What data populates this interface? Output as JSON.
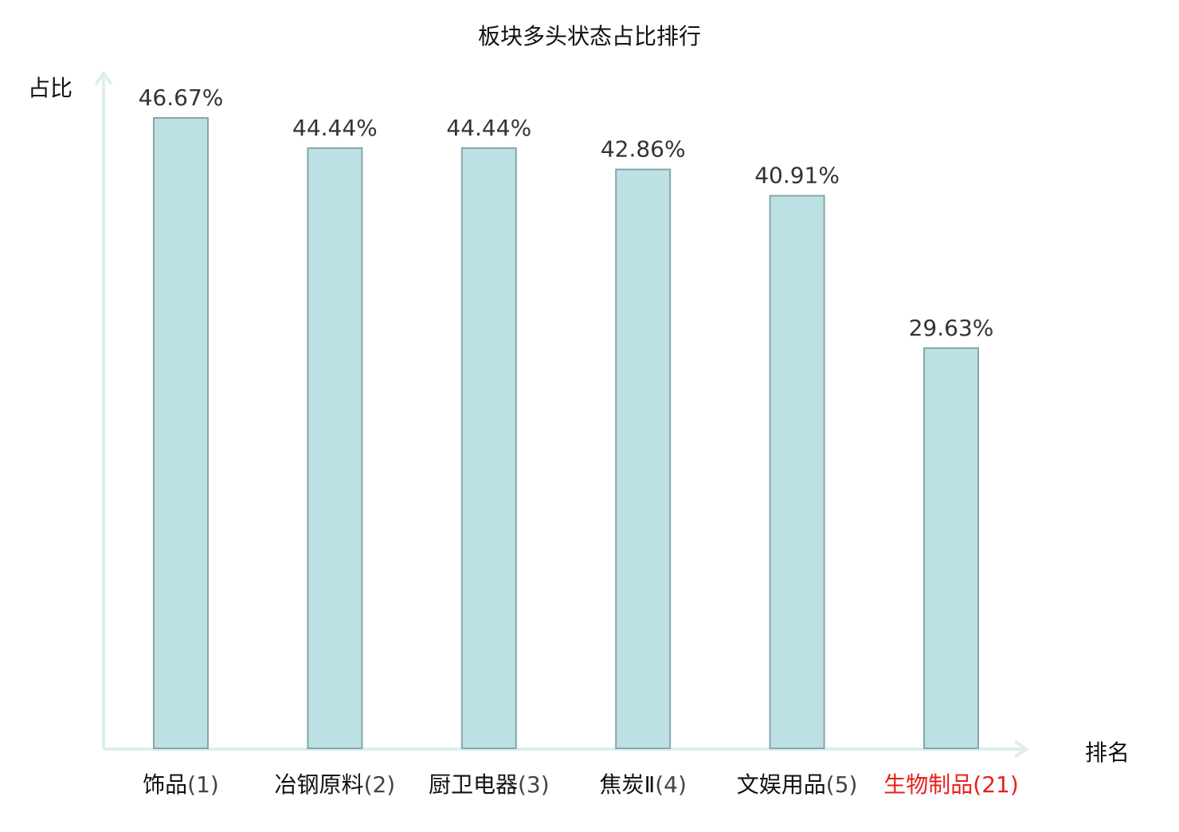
{
  "chart_data": {
    "type": "bar",
    "title": "板块多头状态占比排行",
    "xlabel": "排名",
    "ylabel": "占比",
    "categories": [
      "饰品(1)",
      "冶钢原料(2)",
      "厨卫电器(3)",
      "焦炭Ⅱ(4)",
      "文娱用品(5)",
      "生物制品(21)"
    ],
    "category_names": [
      "饰品",
      "冶钢原料",
      "厨卫电器",
      "焦炭Ⅱ",
      "文娱用品",
      "生物制品"
    ],
    "ranks": [
      "(1)",
      "(2)",
      "(3)",
      "(4)",
      "(5)",
      "(21)"
    ],
    "values": [
      46.67,
      44.44,
      44.44,
      42.86,
      40.91,
      29.63
    ],
    "value_labels": [
      "46.67%",
      "44.44%",
      "44.44%",
      "42.86%",
      "40.91%",
      "29.63%"
    ],
    "highlight_index": 5,
    "ylim": [
      0,
      46.67
    ],
    "grid": false,
    "legend": "none",
    "colors": {
      "bar_fill": "#bce0e3",
      "bar_stroke": "#84a7aa",
      "axis": "#dcefee",
      "text": "#111111",
      "value_label": "#333333",
      "rank": "#444444",
      "highlight": "#e8201c"
    }
  }
}
